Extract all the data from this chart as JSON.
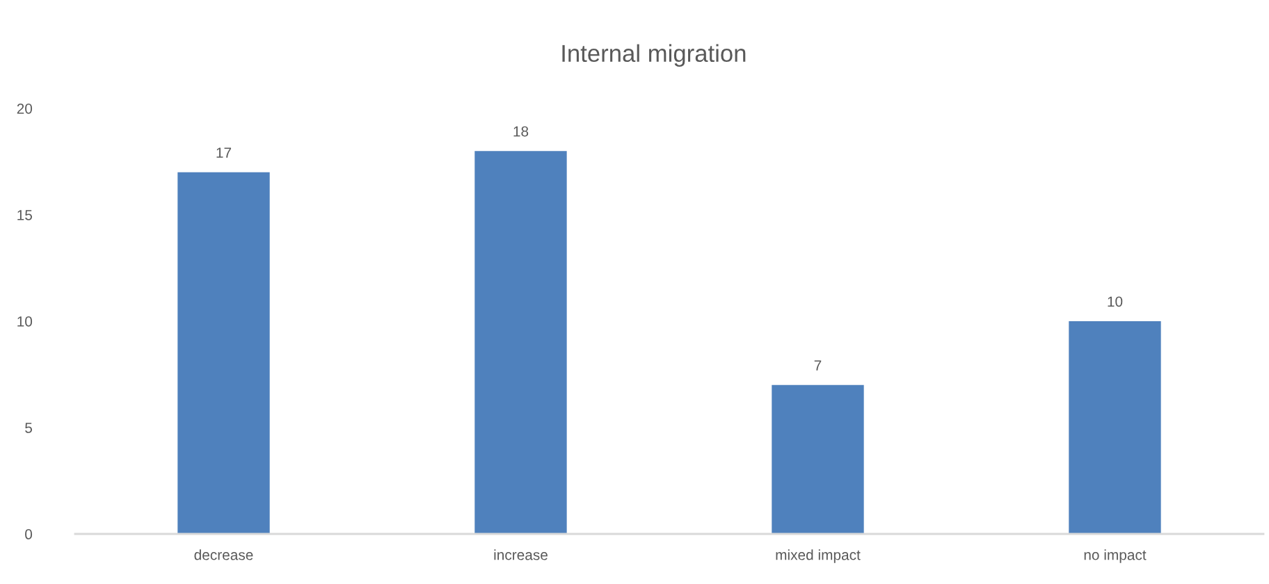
{
  "chart_data": {
    "type": "bar",
    "title": "Internal migration",
    "categories": [
      "decrease",
      "increase",
      "mixed impact",
      "no impact"
    ],
    "values": [
      17,
      18,
      7,
      10
    ],
    "color": "#4f81bd",
    "ylim": [
      0,
      20
    ],
    "yticks": [
      0,
      5,
      10,
      15,
      20
    ],
    "grid": false,
    "data_labels": true
  }
}
